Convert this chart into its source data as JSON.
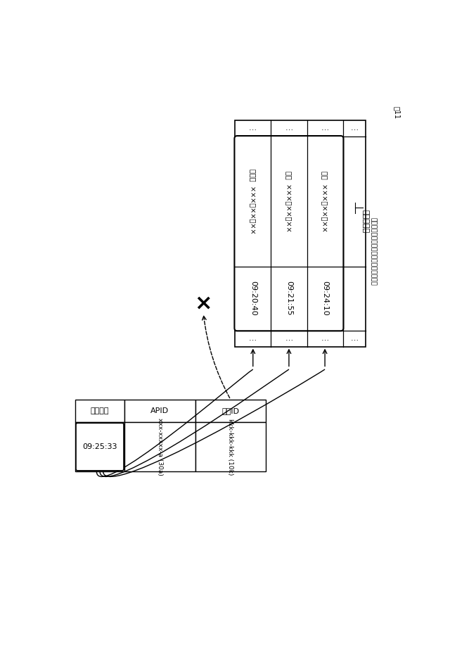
{
  "fig_label": "図11",
  "left_table": {
    "headers": [
      "検出時刻",
      "APID",
      "端末ID"
    ],
    "row": [
      "09:25:33",
      "xxx-xxxxx-a (30a)",
      "kkk-kkk-kkk (10k)"
    ]
  },
  "right_table": {
    "rows": [
      {
        "time": "09:20:40",
        "place": "八王子",
        "plate": "×××な××－××"
      },
      {
        "time": "09:21:55",
        "place": "足立",
        "plate": "×××る××－××"
      },
      {
        "time": "09:24:10",
        "place": "品川",
        "plate": "×××の××－××"
      }
    ],
    "label": "候補リスト",
    "sublabel": "（調査対象端末に対応する車番の候補）"
  },
  "bg_color": "#ffffff",
  "line_color": "#000000",
  "text_color": "#000000"
}
